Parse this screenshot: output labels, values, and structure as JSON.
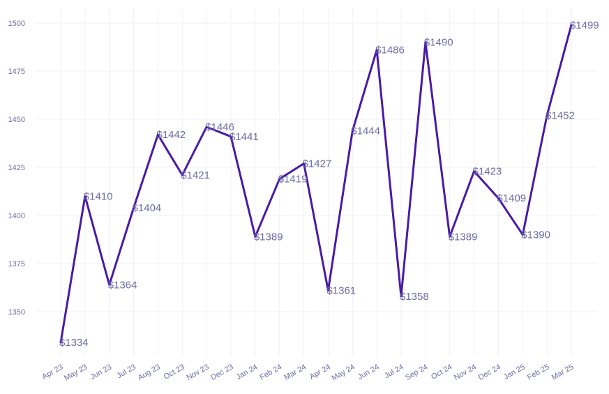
{
  "chart_data": {
    "type": "line",
    "title": "",
    "xlabel": "",
    "ylabel": "",
    "categories": [
      "Apr 23",
      "May 23",
      "Jun 23",
      "Jul 23",
      "Aug 23",
      "Oct 23",
      "Nov 23",
      "Dec 23",
      "Jan 24",
      "Feb 24",
      "Mar 24",
      "Apr 24",
      "May 24",
      "Jun 24",
      "Jul 24",
      "Sep 24",
      "Oct 24",
      "Nov 24",
      "Dec 24",
      "Jan 25",
      "Feb 25",
      "Mar 25"
    ],
    "values": [
      1334,
      1410,
      1364,
      1404,
      1442,
      1421,
      1446,
      1441,
      1389,
      1419,
      1427,
      1361,
      1444,
      1486,
      1358,
      1490,
      1389,
      1423,
      1409,
      1390,
      1452,
      1499
    ],
    "data_labels": [
      "$1334",
      "$1410",
      "$1364",
      "$1404",
      "$1442",
      "$1421",
      "$1446",
      "$1441",
      "$1389",
      "$1419",
      "$1427",
      "$1361",
      "$1444",
      "$1486",
      "$1358",
      "$1490",
      "$1389",
      "$1423",
      "$1409",
      "$1390",
      "$1452",
      "$1499"
    ],
    "yticks": [
      1350,
      1375,
      1400,
      1425,
      1450,
      1475,
      1500
    ],
    "ytick_labels": [
      "1350",
      "1375",
      "1400",
      "1425",
      "1450",
      "1475",
      "1500"
    ],
    "ylim": [
      1324,
      1508
    ],
    "grid": true,
    "legend": "none",
    "line_color": "#4a1aa6",
    "label_color": "#6b6ba8"
  }
}
